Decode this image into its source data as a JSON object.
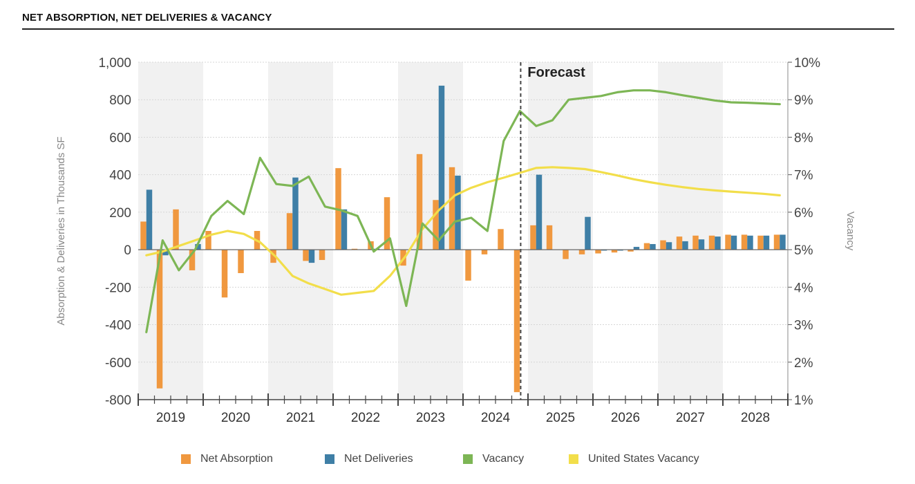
{
  "header": {
    "title": "NET ABSORPTION, NET DELIVERIES & VACANCY"
  },
  "colors": {
    "absorption": "#F0983F",
    "deliveries": "#3F7FA6",
    "vacancy": "#7DB655",
    "us_vacancy": "#F2DE4A",
    "band": "#F1F1F1"
  },
  "chart_data": {
    "type": "bar",
    "annotation": "Forecast",
    "forecast_start_index": 23,
    "ylabel": "Absorption & Deliveries in Thousands SF",
    "y2label": "Vacancy",
    "ylim": [
      -800,
      1000
    ],
    "y_ticks": [
      "1,000",
      "800",
      "600",
      "400",
      "200",
      "0",
      "-200",
      "-400",
      "-600",
      "-800"
    ],
    "y2lim": [
      1,
      10
    ],
    "y2_ticks": [
      "10%",
      "9%",
      "8%",
      "7%",
      "6%",
      "5%",
      "4%",
      "3%",
      "2%",
      "1%"
    ],
    "years": [
      "2019",
      "2020",
      "2021",
      "2022",
      "2023",
      "2024",
      "2025",
      "2026",
      "2027",
      "2028"
    ],
    "categories": [
      "2019 Q1",
      "2019 Q2",
      "2019 Q3",
      "2019 Q4",
      "2020 Q1",
      "2020 Q2",
      "2020 Q3",
      "2020 Q4",
      "2021 Q1",
      "2021 Q2",
      "2021 Q3",
      "2021 Q4",
      "2022 Q1",
      "2022 Q2",
      "2022 Q3",
      "2022 Q4",
      "2023 Q1",
      "2023 Q2",
      "2023 Q3",
      "2023 Q4",
      "2024 Q1",
      "2024 Q2",
      "2024 Q3",
      "2024 Q4",
      "2025 Q1",
      "2025 Q2",
      "2025 Q3",
      "2025 Q4",
      "2026 Q1",
      "2026 Q2",
      "2026 Q3",
      "2026 Q4",
      "2027 Q1",
      "2027 Q2",
      "2027 Q3",
      "2027 Q4",
      "2028 Q1",
      "2028 Q2",
      "2028 Q3",
      "2028 Q4"
    ],
    "series": [
      {
        "name": "Net Absorption",
        "kind": "bar",
        "values": [
          150,
          -740,
          215,
          -110,
          100,
          -255,
          -125,
          100,
          -70,
          195,
          -60,
          -55,
          435,
          5,
          45,
          280,
          -85,
          510,
          265,
          440,
          -165,
          -25,
          110,
          -760,
          130,
          130,
          -50,
          -25,
          -20,
          -15,
          -10,
          35,
          50,
          70,
          75,
          75,
          80,
          80,
          75,
          80
        ]
      },
      {
        "name": "Net Deliveries",
        "kind": "bar",
        "values": [
          320,
          -30,
          0,
          30,
          0,
          0,
          0,
          0,
          0,
          385,
          -70,
          0,
          215,
          0,
          5,
          0,
          0,
          0,
          875,
          395,
          0,
          0,
          0,
          0,
          400,
          0,
          0,
          175,
          -5,
          -5,
          15,
          30,
          40,
          45,
          55,
          70,
          75,
          75,
          75,
          80
        ]
      },
      {
        "name": "Vacancy",
        "kind": "line",
        "unit": "%",
        "values": [
          2.8,
          5.25,
          4.45,
          5.0,
          5.9,
          6.3,
          5.95,
          7.45,
          6.75,
          6.7,
          6.95,
          6.15,
          6.05,
          5.9,
          4.95,
          5.3,
          3.5,
          5.7,
          5.25,
          5.75,
          5.85,
          5.5,
          7.9,
          8.7,
          8.3,
          8.45,
          9.0,
          9.05,
          9.1,
          9.2,
          9.25,
          9.25,
          9.2,
          9.12,
          9.05,
          8.98,
          8.93,
          8.92,
          8.9,
          8.88
        ]
      },
      {
        "name": "United States Vacancy",
        "kind": "line",
        "unit": "%",
        "values": [
          4.85,
          4.95,
          5.1,
          5.25,
          5.4,
          5.5,
          5.42,
          5.2,
          4.8,
          4.3,
          4.1,
          3.95,
          3.8,
          3.85,
          3.9,
          4.3,
          4.85,
          5.55,
          6.05,
          6.45,
          6.65,
          6.8,
          6.92,
          7.05,
          7.18,
          7.2,
          7.18,
          7.15,
          7.07,
          6.98,
          6.88,
          6.8,
          6.73,
          6.67,
          6.62,
          6.58,
          6.55,
          6.52,
          6.49,
          6.45
        ]
      }
    ],
    "legend_position": "bottom",
    "legend": [
      "Net Absorption",
      "Net Deliveries",
      "Vacancy",
      "United States Vacancy"
    ],
    "grid": true
  }
}
